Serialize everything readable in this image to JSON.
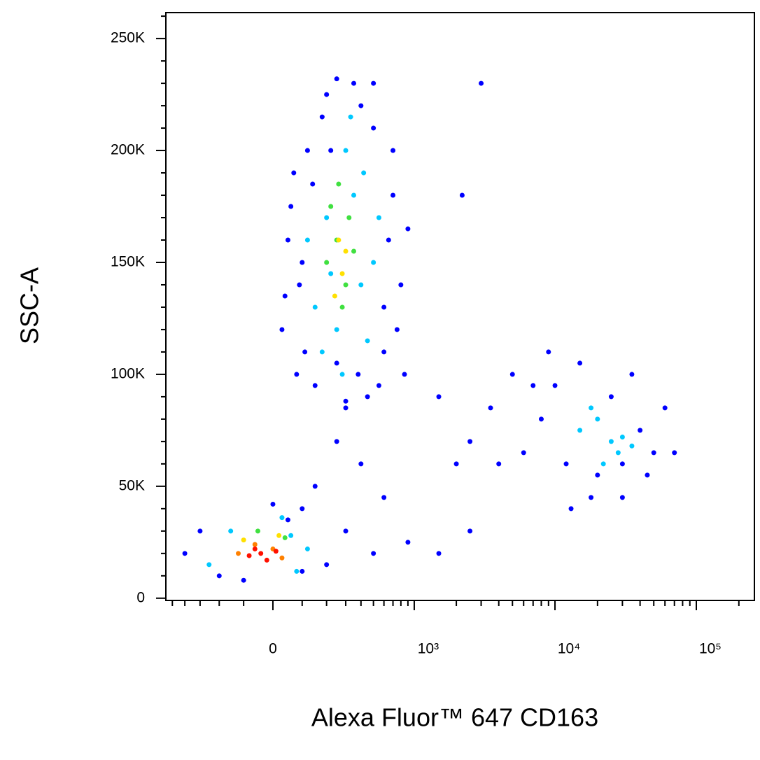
{
  "chart_data": {
    "type": "scatter",
    "xlabel": "Alexa Fluor™ 647 CD163",
    "ylabel": "SSC-A",
    "xscale": "biexponential",
    "xscale_width": 202,
    "xlim": [
      -560,
      257600
    ],
    "ylim": [
      -1000,
      261600
    ],
    "xticks": [
      0,
      {
        "value": 1000,
        "label": "10³"
      },
      {
        "value": 10000,
        "label": "10⁴"
      },
      {
        "value": 100000,
        "label": "10⁵"
      }
    ],
    "xminorticks": [
      -500,
      -400,
      -300,
      -200,
      -100,
      100,
      200,
      300,
      400,
      500,
      600,
      700,
      800,
      900,
      2000,
      3000,
      4000,
      5000,
      6000,
      7000,
      8000,
      9000,
      20000,
      30000,
      40000,
      50000,
      60000,
      70000,
      80000,
      90000,
      200000
    ],
    "yticks": [
      0,
      {
        "value": 50000,
        "label": "50K"
      },
      {
        "value": 100000,
        "label": "100K"
      },
      {
        "value": 150000,
        "label": "150K"
      },
      {
        "value": 200000,
        "label": "200K"
      },
      {
        "value": 250000,
        "label": "250K"
      }
    ],
    "yminorticks": [
      10000,
      20000,
      30000,
      40000,
      60000,
      70000,
      80000,
      90000,
      110000,
      120000,
      130000,
      140000,
      160000,
      170000,
      180000,
      190000,
      210000,
      220000,
      230000,
      240000,
      260000
    ],
    "series": [
      {
        "color": "#0000ff",
        "x": [
          30,
          60,
          80,
          120,
          150,
          90,
          50,
          200,
          350,
          500,
          700,
          800,
          600,
          450,
          300,
          250,
          180,
          400,
          650,
          750,
          40,
          110,
          550,
          900,
          380,
          140,
          700,
          250,
          100,
          600,
          850,
          300,
          70,
          500,
          220,
          1500,
          2500,
          3500,
          5000,
          6000,
          8000,
          10000,
          12000,
          15000,
          20000,
          25000,
          30000,
          40000,
          50000,
          60000,
          70000,
          4000,
          7000,
          18000,
          35000,
          2000,
          9000,
          45000,
          13000,
          30000,
          -300,
          -200,
          100,
          150,
          300,
          500,
          200,
          -400,
          0,
          600,
          900,
          400,
          1500,
          2500,
          250,
          -100,
          100,
          50,
          3000,
          2200
        ],
        "y": [
          120000,
          175000,
          100000,
          200000,
          95000,
          140000,
          160000,
          225000,
          230000,
          210000,
          180000,
          140000,
          110000,
          90000,
          88000,
          105000,
          215000,
          220000,
          160000,
          120000,
          135000,
          110000,
          95000,
          165000,
          100000,
          185000,
          200000,
          232000,
          150000,
          130000,
          100000,
          85000,
          190000,
          230000,
          200000,
          90000,
          70000,
          85000,
          100000,
          65000,
          80000,
          95000,
          60000,
          105000,
          55000,
          90000,
          60000,
          75000,
          65000,
          85000,
          65000,
          60000,
          95000,
          45000,
          100000,
          60000,
          110000,
          55000,
          40000,
          45000,
          30000,
          10000,
          40000,
          50000,
          30000,
          20000,
          15000,
          20000,
          42000,
          45000,
          25000,
          60000,
          20000,
          30000,
          70000,
          8000,
          12000,
          35000,
          230000,
          180000
        ]
      },
      {
        "color": "#00c8ff",
        "x": [
          150,
          250,
          400,
          350,
          200,
          500,
          300,
          180,
          450,
          120,
          280,
          420,
          550,
          330,
          220,
          15000,
          20000,
          25000,
          28000,
          18000,
          30000,
          22000,
          35000,
          -150,
          60,
          -250,
          80,
          30,
          120
        ],
        "y": [
          130000,
          120000,
          140000,
          180000,
          170000,
          150000,
          200000,
          110000,
          115000,
          160000,
          100000,
          190000,
          170000,
          215000,
          145000,
          75000,
          80000,
          70000,
          65000,
          85000,
          72000,
          60000,
          68000,
          30000,
          28000,
          15000,
          12000,
          36000,
          22000
        ]
      },
      {
        "color": "#40e040",
        "x": [
          250,
          300,
          220,
          350,
          280,
          200,
          320,
          260,
          -50,
          40
        ],
        "y": [
          160000,
          140000,
          175000,
          155000,
          130000,
          150000,
          170000,
          185000,
          30000,
          27000
        ]
      },
      {
        "color": "#ffe000",
        "x": [
          280,
          260,
          300,
          240,
          -100,
          20
        ],
        "y": [
          145000,
          160000,
          155000,
          135000,
          26000,
          28000
        ]
      },
      {
        "color": "#ff8000",
        "x": [
          -60,
          0,
          -120,
          30
        ],
        "y": [
          24000,
          22000,
          20000,
          18000
        ]
      },
      {
        "color": "#ff1000",
        "x": [
          -40,
          -80,
          10,
          -20,
          -60
        ],
        "y": [
          20000,
          19000,
          21000,
          17000,
          22000
        ]
      }
    ]
  }
}
